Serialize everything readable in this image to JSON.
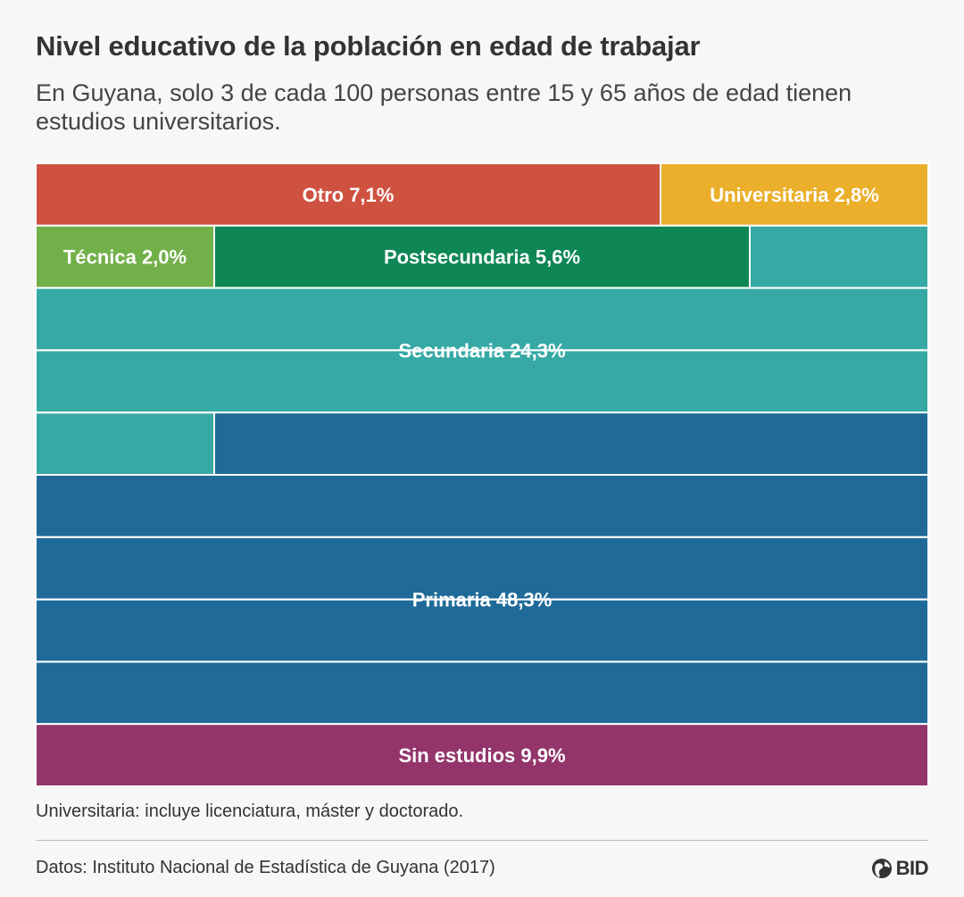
{
  "header": {
    "title": "Nivel educativo de la población en edad de trabajar",
    "subtitle": "En Guyana, solo 3 de cada 100 personas entre 15 y 65 años de edad tienen estudios universitarios."
  },
  "chart_data": {
    "type": "waffle",
    "unit": "%",
    "grid_cells": 100,
    "segments": [
      {
        "label": "Otro",
        "value": 7.1,
        "display": "Otro 7,1%",
        "color": "#cf5241"
      },
      {
        "label": "Universitaria",
        "value": 2.8,
        "display": "Universitaria 2,8%",
        "color": "#ebaf2b"
      },
      {
        "label": "Técnica",
        "value": 2.0,
        "display": "Técnica 2,0%",
        "color": "#72b04a"
      },
      {
        "label": "Postsecundaria",
        "value": 5.6,
        "display": "Postsecundaria 5,6%",
        "color": "#0f8755"
      },
      {
        "label": "Secundaria",
        "value": 24.3,
        "display": "Secundaria 24,3%",
        "color": "#36a9a5"
      },
      {
        "label": "Primaria",
        "value": 48.3,
        "display": "Primaria 48,3%",
        "color": "#1f6a99"
      },
      {
        "label": "Sin estudios",
        "value": 9.9,
        "display": "Sin estudios 9,9%",
        "color": "#93356b"
      }
    ]
  },
  "footer": {
    "note": "Universitaria: incluye licenciatura, máster y doctorado.",
    "source": "Datos: Instituto Nacional de Estadística de Guyana (2017)",
    "logo_text": "BID",
    "logo_icon": "globe-icon"
  }
}
